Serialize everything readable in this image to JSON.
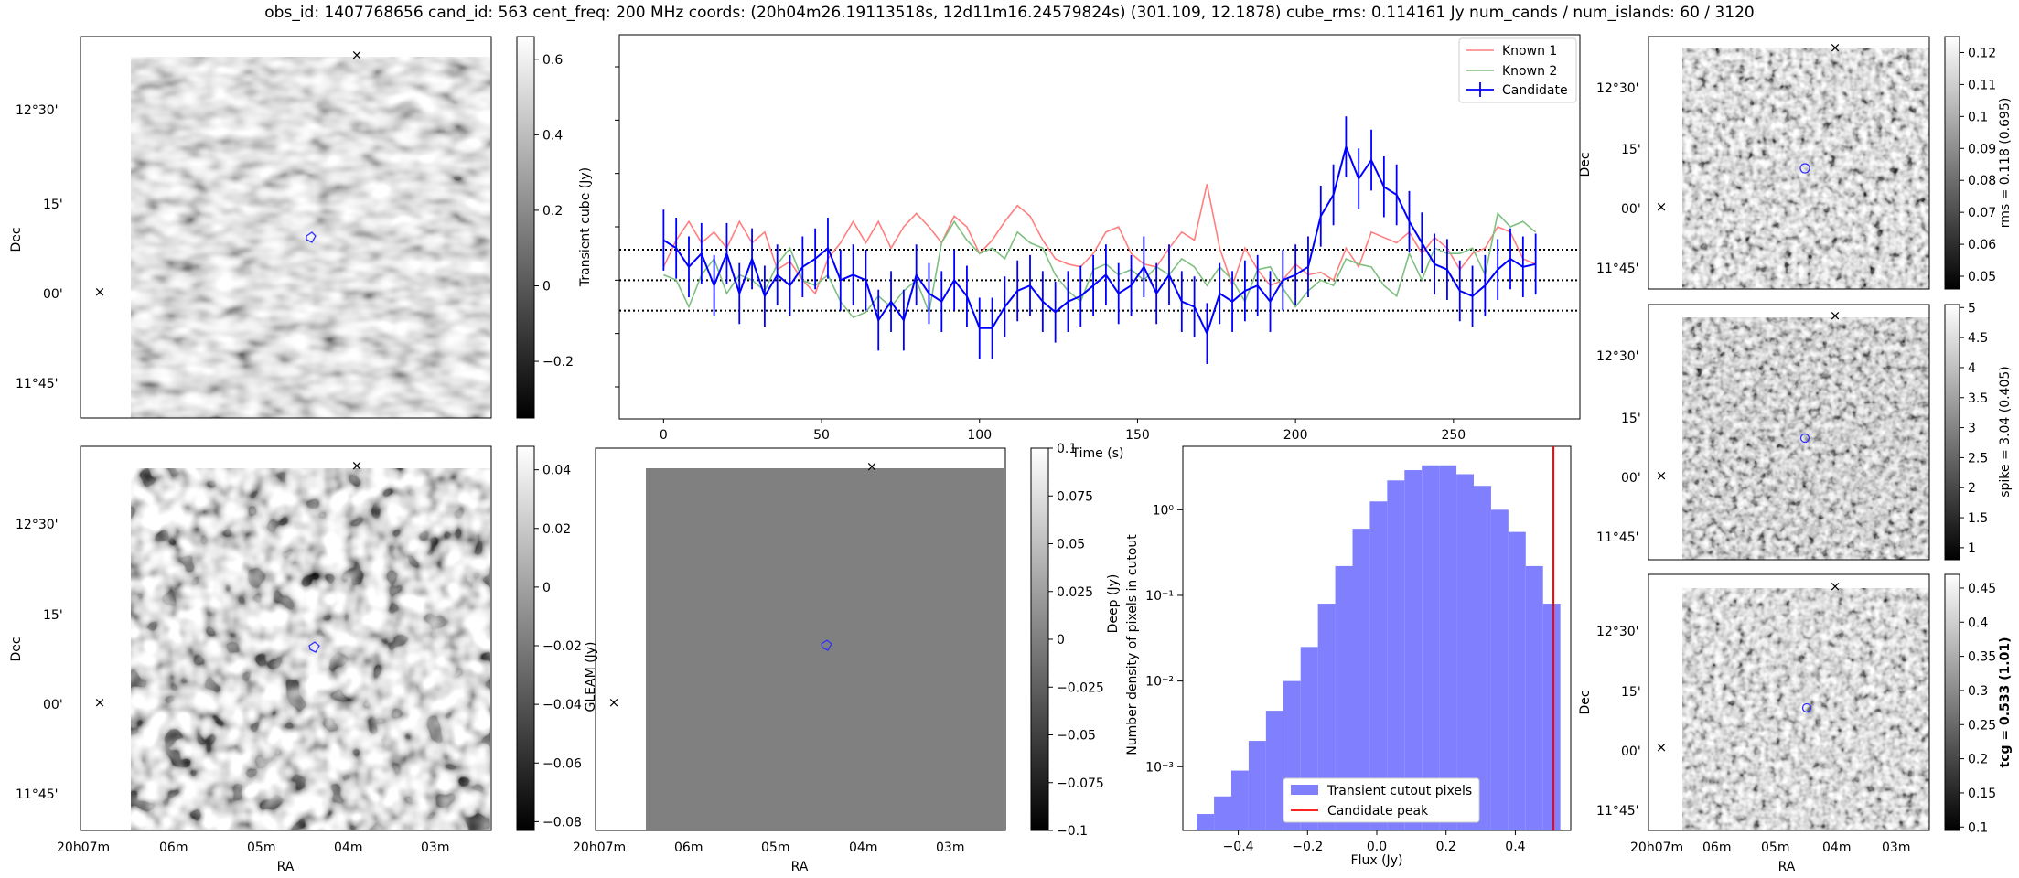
{
  "figure_title": "obs_id: 1407768656 cand_id: 563 cent_freq: 200 MHz coords: (20h04m26.19113518s, 12d11m16.24579824s) (301.109, 12.1878) cube_rms: 0.114161 Jy num_cands / num_islands: 60 / 3120",
  "colors": {
    "known1": "#ff7f7f",
    "known2": "#7fbf7f",
    "candidate": "#0000ff",
    "hist_fill": "#8080ff",
    "peak_line": "#ff0000",
    "marker_red": "#ff0000",
    "marker_green": "#008000"
  },
  "chart_data": [
    {
      "type": "image",
      "panel": "transient-cube-image",
      "title": "",
      "xlabel": "",
      "ylabel": "Dec",
      "dec_ticks": [
        "12°30'",
        "15'",
        "00'",
        "11°45'"
      ],
      "ra_ticks": [],
      "colorbar": {
        "label": "Transient cube (Jy)",
        "range": [
          -0.35,
          0.66
        ],
        "ticks": [
          0.6,
          0.4,
          0.2,
          0.0,
          -0.2
        ]
      }
    },
    {
      "type": "line",
      "panel": "lightcurve",
      "title": "",
      "xlabel": "Time (s)",
      "ylabel": "",
      "xlim": [
        -14,
        290
      ],
      "ylim": [
        -0.52,
        0.92
      ],
      "xticks": [
        0,
        50,
        100,
        150,
        200,
        250
      ],
      "hlines": [
        -0.114161,
        0.0,
        0.114161
      ],
      "series": [
        {
          "name": "Known 1",
          "x": [
            0,
            4,
            8,
            12,
            16,
            20,
            24,
            28,
            32,
            36,
            40,
            44,
            48,
            52,
            56,
            60,
            64,
            68,
            72,
            76,
            80,
            84,
            88,
            92,
            96,
            100,
            104,
            108,
            112,
            116,
            120,
            124,
            128,
            132,
            136,
            140,
            144,
            148,
            152,
            156,
            160,
            164,
            168,
            172,
            176,
            180,
            184,
            188,
            192,
            196,
            200,
            204,
            208,
            212,
            216,
            220,
            224,
            228,
            232,
            236,
            240,
            244,
            248,
            252,
            256,
            260,
            264,
            268,
            272,
            276
          ],
          "values": [
            0.05,
            0.15,
            0.22,
            0.14,
            0.18,
            0.12,
            0.22,
            0.14,
            0.18,
            0.04,
            0.07,
            0.0,
            -0.05,
            0.08,
            0.14,
            0.22,
            0.14,
            0.22,
            0.12,
            0.2,
            0.25,
            0.2,
            0.14,
            0.24,
            0.2,
            0.1,
            0.15,
            0.22,
            0.28,
            0.24,
            0.15,
            0.08,
            0.06,
            0.05,
            0.1,
            0.18,
            0.2,
            0.1,
            0.06,
            0.05,
            0.12,
            0.18,
            0.15,
            0.36,
            0.12,
            -0.02,
            0.12,
            0.04,
            -0.02,
            0.0,
            0.06,
            0.02,
            0.03,
            0.0,
            0.12,
            0.05,
            0.18,
            0.16,
            0.14,
            0.18,
            0.1,
            0.16,
            0.12,
            0.04,
            0.1,
            0.12,
            0.2,
            0.18,
            0.08,
            0.06
          ]
        },
        {
          "name": "Known 2",
          "x": [
            0,
            4,
            8,
            12,
            16,
            20,
            24,
            28,
            32,
            36,
            40,
            44,
            48,
            52,
            56,
            60,
            64,
            68,
            72,
            76,
            80,
            84,
            88,
            92,
            96,
            100,
            104,
            108,
            112,
            116,
            120,
            124,
            128,
            132,
            136,
            140,
            144,
            148,
            152,
            156,
            160,
            164,
            168,
            172,
            176,
            180,
            184,
            188,
            192,
            196,
            200,
            204,
            208,
            212,
            216,
            220,
            224,
            228,
            232,
            236,
            240,
            244,
            248,
            252,
            256,
            260,
            264,
            268,
            272,
            276
          ],
          "values": [
            0.02,
            0.0,
            -0.1,
            0.02,
            0.08,
            -0.05,
            0.02,
            0.0,
            -0.04,
            0.06,
            0.12,
            0.0,
            -0.02,
            0.02,
            -0.08,
            -0.14,
            -0.12,
            -0.06,
            -0.1,
            -0.04,
            0.0,
            -0.12,
            0.14,
            0.22,
            0.15,
            0.1,
            0.12,
            0.08,
            0.18,
            0.14,
            0.12,
            0.02,
            -0.04,
            -0.08,
            0.04,
            0.06,
            0.02,
            0.04,
            0.0,
            0.05,
            0.02,
            0.08,
            0.05,
            -0.02,
            0.05,
            0.0,
            -0.08,
            0.04,
            0.05,
            -0.03,
            -0.1,
            -0.04,
            0.0,
            -0.02,
            0.08,
            0.06,
            0.05,
            -0.02,
            -0.06,
            0.1,
            0.0,
            0.12,
            0.1,
            0.1,
            0.12,
            0.02,
            0.25,
            0.2,
            0.22,
            0.18
          ]
        },
        {
          "name": "Candidate",
          "x": [
            0,
            4,
            8,
            12,
            16,
            20,
            24,
            28,
            32,
            36,
            40,
            44,
            48,
            52,
            56,
            60,
            64,
            68,
            72,
            76,
            80,
            84,
            88,
            92,
            96,
            100,
            104,
            108,
            112,
            116,
            120,
            124,
            128,
            132,
            136,
            140,
            144,
            148,
            152,
            156,
            160,
            164,
            168,
            172,
            176,
            180,
            184,
            188,
            192,
            196,
            200,
            204,
            208,
            212,
            216,
            220,
            224,
            228,
            232,
            236,
            240,
            244,
            248,
            252,
            256,
            260,
            264,
            268,
            272,
            276
          ],
          "values": [
            0.15,
            0.12,
            0.05,
            0.1,
            -0.02,
            0.1,
            -0.05,
            0.08,
            -0.06,
            0.02,
            -0.02,
            0.05,
            0.08,
            0.12,
            0.0,
            0.02,
            0.0,
            -0.15,
            -0.08,
            -0.15,
            0.02,
            -0.05,
            -0.08,
            0.0,
            -0.06,
            -0.18,
            -0.18,
            -0.1,
            -0.04,
            -0.02,
            -0.08,
            -0.12,
            -0.08,
            -0.06,
            -0.02,
            0.02,
            -0.05,
            -0.02,
            0.05,
            -0.05,
            0.02,
            -0.08,
            -0.1,
            -0.2,
            -0.05,
            -0.08,
            -0.04,
            -0.02,
            -0.08,
            0.0,
            0.02,
            0.05,
            0.24,
            0.32,
            0.5,
            0.38,
            0.45,
            0.35,
            0.32,
            0.22,
            0.14,
            0.06,
            0.04,
            -0.04,
            -0.06,
            -0.02,
            0.04,
            0.08,
            0.05,
            0.06
          ],
          "yerr": 0.114161
        }
      ],
      "legend": [
        "Known 1",
        "Known 2",
        "Candidate"
      ],
      "legend_loc": "upper-right"
    },
    {
      "type": "image",
      "panel": "rms-image",
      "ylabel": "Dec",
      "dec_ticks": [
        "12°30'",
        "15'",
        "00'",
        "11°45'"
      ],
      "colorbar": {
        "label": "rms = 0.118 (0.695)",
        "range": [
          0.046,
          0.125
        ],
        "ticks": [
          0.12,
          0.11,
          0.1,
          0.09,
          0.08,
          0.07,
          0.06,
          0.05
        ]
      }
    },
    {
      "type": "image",
      "panel": "deep-image",
      "xlabel": "RA",
      "ylabel": "Dec",
      "dec_ticks": [
        "12°30'",
        "15'",
        "00'",
        "11°45'"
      ],
      "ra_ticks": [
        "20h07m",
        "06m",
        "05m",
        "04m",
        "03m"
      ],
      "colorbar": {
        "label": "Deep (Jy)",
        "range": [
          -0.083,
          0.048
        ],
        "ticks": [
          0.04,
          0.02,
          0.0,
          -0.02,
          -0.04,
          -0.06,
          -0.08
        ]
      }
    },
    {
      "type": "image",
      "panel": "gleam-image",
      "xlabel": "RA",
      "ylabel": "GLEAM (Jy)",
      "ra_ticks": [
        "20h07m",
        "06m",
        "05m",
        "04m",
        "03m"
      ],
      "colorbar": {
        "label": "",
        "range": [
          -0.1,
          0.1
        ],
        "ticks": [
          0.1,
          0.075,
          0.05,
          0.025,
          0.0,
          -0.025,
          -0.05,
          -0.075,
          -0.1
        ]
      }
    },
    {
      "type": "histogram",
      "panel": "flux-histogram",
      "xlabel": "Flux (Jy)",
      "ylabel": "Number density of pixels in cutout",
      "yscale": "log",
      "xlim": [
        -0.56,
        0.56
      ],
      "ylim": [
        0.00018,
        5.5
      ],
      "xticks": [
        -0.4,
        -0.2,
        0.0,
        0.2,
        0.4
      ],
      "yticks": [
        0.001,
        0.01,
        0.1,
        1
      ],
      "ytick_labels": [
        "10⁻³",
        "10⁻²",
        "10⁻¹",
        "10⁰"
      ],
      "bin_edges": [
        -0.52,
        -0.47,
        -0.42,
        -0.37,
        -0.32,
        -0.27,
        -0.22,
        -0.17,
        -0.12,
        -0.07,
        -0.02,
        0.03,
        0.08,
        0.13,
        0.18,
        0.23,
        0.28,
        0.33,
        0.38,
        0.43,
        0.48,
        0.53
      ],
      "counts": [
        0.00028,
        0.00045,
        0.0009,
        0.002,
        0.0045,
        0.01,
        0.025,
        0.08,
        0.22,
        0.6,
        1.25,
        2.2,
        2.9,
        3.3,
        3.3,
        2.6,
        1.9,
        1.0,
        0.55,
        0.22,
        0.08
      ],
      "candidate_peak": 0.51,
      "legend": [
        "Transient cutout pixels",
        "Candidate peak"
      ],
      "legend_loc": "lower-center"
    },
    {
      "type": "image",
      "panel": "spike-image",
      "ylabel": "Dec",
      "dec_ticks": [
        "12°30'",
        "15'",
        "00'",
        "11°45'"
      ],
      "colorbar": {
        "label": "spike = 3.04 (0.405)",
        "range": [
          0.8,
          5.05
        ],
        "ticks": [
          5.0,
          4.5,
          4.0,
          3.5,
          3.0,
          2.5,
          2.0,
          1.5,
          1.0
        ]
      }
    },
    {
      "type": "image",
      "panel": "tcg-image",
      "xlabel": "RA",
      "ylabel": "Dec",
      "dec_ticks": [
        "12°30'",
        "15'",
        "00'",
        "11°45'"
      ],
      "ra_ticks": [
        "20h07m",
        "06m",
        "05m",
        "04m",
        "03m"
      ],
      "colorbar": {
        "label": "tcg = 0.533 (1.01)",
        "range": [
          0.095,
          0.47
        ],
        "ticks": [
          0.45,
          0.4,
          0.35,
          0.3,
          0.25,
          0.2,
          0.15,
          0.1
        ]
      }
    }
  ]
}
